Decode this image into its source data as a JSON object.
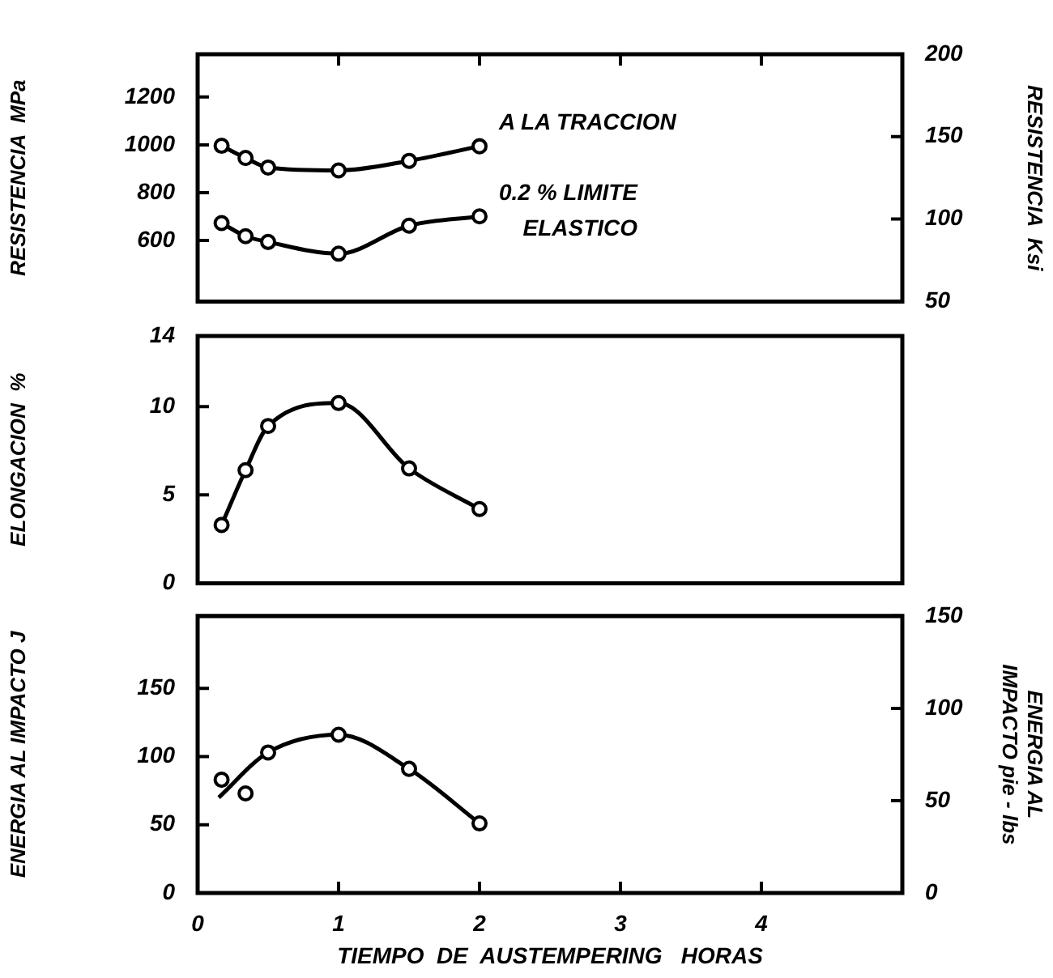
{
  "chart_data": [
    {
      "type": "line",
      "ylabel": "RESISTENCIA  MPa",
      "y2label": "RESISTENCIA  Ksi",
      "xlim": [
        0,
        5
      ],
      "xticks": [
        0,
        1,
        2,
        3,
        4
      ],
      "ylim": [
        345,
        1379
      ],
      "yticks": [
        600,
        800,
        1000,
        1200
      ],
      "y2lim": [
        50,
        200
      ],
      "y2ticks": [
        50,
        100,
        150,
        200
      ],
      "tick_labels": "y",
      "marker": "circle",
      "line_style": "solid",
      "series": [
        {
          "name": "A LA TRACCION",
          "color": "#000000",
          "x": [
            0.17,
            0.34,
            0.5,
            1,
            1.5,
            2
          ],
          "values": [
            996,
            945,
            905,
            893,
            933,
            994
          ]
        },
        {
          "name": "0.2 % LIMITE ELASTICO",
          "color": "#000000",
          "x": [
            0.17,
            0.34,
            0.5,
            1,
            1.5,
            2
          ],
          "values": [
            673,
            618,
            594,
            545,
            662,
            701
          ]
        }
      ]
    },
    {
      "type": "line",
      "ylabel": "ELONGACION  %",
      "xlim": [
        0,
        5
      ],
      "xticks": [
        0,
        1,
        2,
        3,
        4
      ],
      "ylim": [
        0,
        14
      ],
      "yticks": [
        0,
        5,
        10,
        14
      ],
      "tick_labels": "y",
      "marker": "circle",
      "line_style": "solid",
      "series": [
        {
          "color": "#000000",
          "x": [
            0.17,
            0.34,
            0.5,
            1,
            1.5,
            2
          ],
          "values": [
            3.3,
            6.4,
            8.9,
            10.2,
            6.5,
            4.2
          ]
        }
      ]
    },
    {
      "type": "line",
      "xlabel": "TIEMPO  DE  AUSTEMPERING   HORAS",
      "ylabel": "ENERGIA AL IMPACTO J",
      "y2label": "ENERGIA AL IMPACTO pie - lbs",
      "xlim": [
        0,
        5
      ],
      "xticks": [
        0,
        1,
        2,
        3,
        4
      ],
      "ylim": [
        0,
        203
      ],
      "yticks": [
        0,
        50,
        100,
        150
      ],
      "y2lim": [
        0,
        150
      ],
      "y2ticks": [
        0,
        50,
        100,
        150
      ],
      "marker": "circle",
      "line_style": "solid",
      "series": [
        {
          "type": "scatter",
          "color": "#000000",
          "x": [
            0.17,
            0.34,
            0.5,
            1,
            1.5,
            2
          ],
          "values": [
            83,
            73,
            103,
            116,
            91,
            51
          ]
        },
        {
          "type": "line",
          "marker": "none",
          "color": "#000000",
          "x": [
            0.15,
            0.5,
            1,
            1.5,
            2
          ],
          "values": [
            70,
            103,
            116,
            91,
            51
          ]
        }
      ]
    }
  ]
}
